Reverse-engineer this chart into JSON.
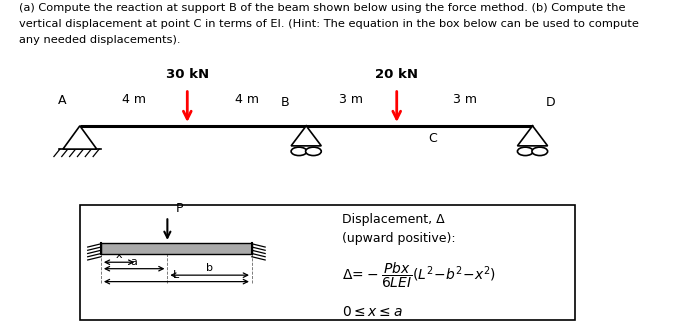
{
  "bg_color": "#ffffff",
  "text_color": "#000000",
  "header_line1": "(a) Compute the reaction at support B of the beam shown below using the force method. (b) Compute the",
  "header_line2": "vertical displacement at point C in terms of EI. (Hint: The equation in the box below can be used to compute",
  "header_line3": "any needed displacements).",
  "load1_label": "30 kN",
  "load2_label": "20 kN",
  "span1_label": "4 m",
  "span2_label": "4 m",
  "span3_label": "3 m",
  "span4_label": "3 m",
  "disp_title": "Displacement, Δ",
  "disp_sub": "(upward positive):"
}
